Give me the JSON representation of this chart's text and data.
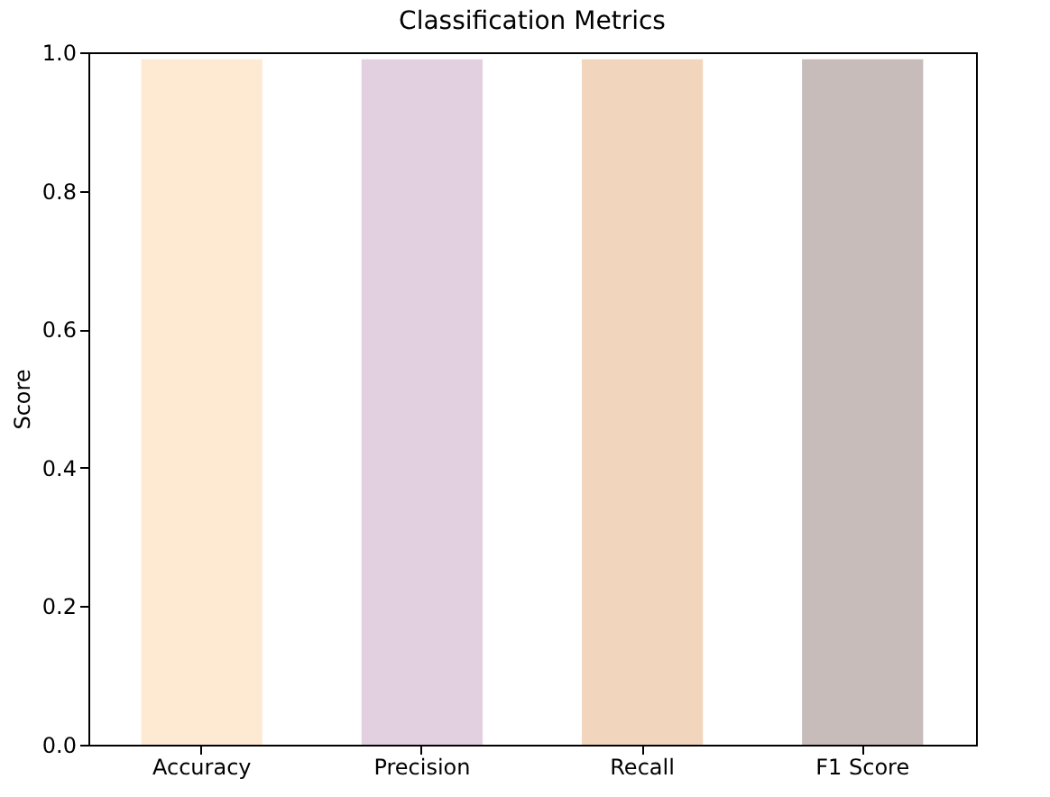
{
  "chart_data": {
    "type": "bar",
    "title": "Classification Metrics",
    "ylabel": "Score",
    "categories": [
      "Accuracy",
      "Precision",
      "Recall",
      "F1 Score"
    ],
    "values": [
      0.99,
      0.99,
      0.99,
      0.99
    ],
    "colors": [
      "#feead2",
      "#e2d0e1",
      "#f1d5bc",
      "#c8bcbb"
    ],
    "ylim": [
      0,
      1
    ],
    "yticks": [
      {
        "value": 0,
        "label": "0.0"
      },
      {
        "value": 0.2,
        "label": "0.2"
      },
      {
        "value": 0.4,
        "label": "0.4"
      },
      {
        "value": 0.6,
        "label": "0.6"
      },
      {
        "value": 0.8,
        "label": "0.8"
      },
      {
        "value": 1,
        "label": "1.0"
      }
    ],
    "grid": false
  }
}
